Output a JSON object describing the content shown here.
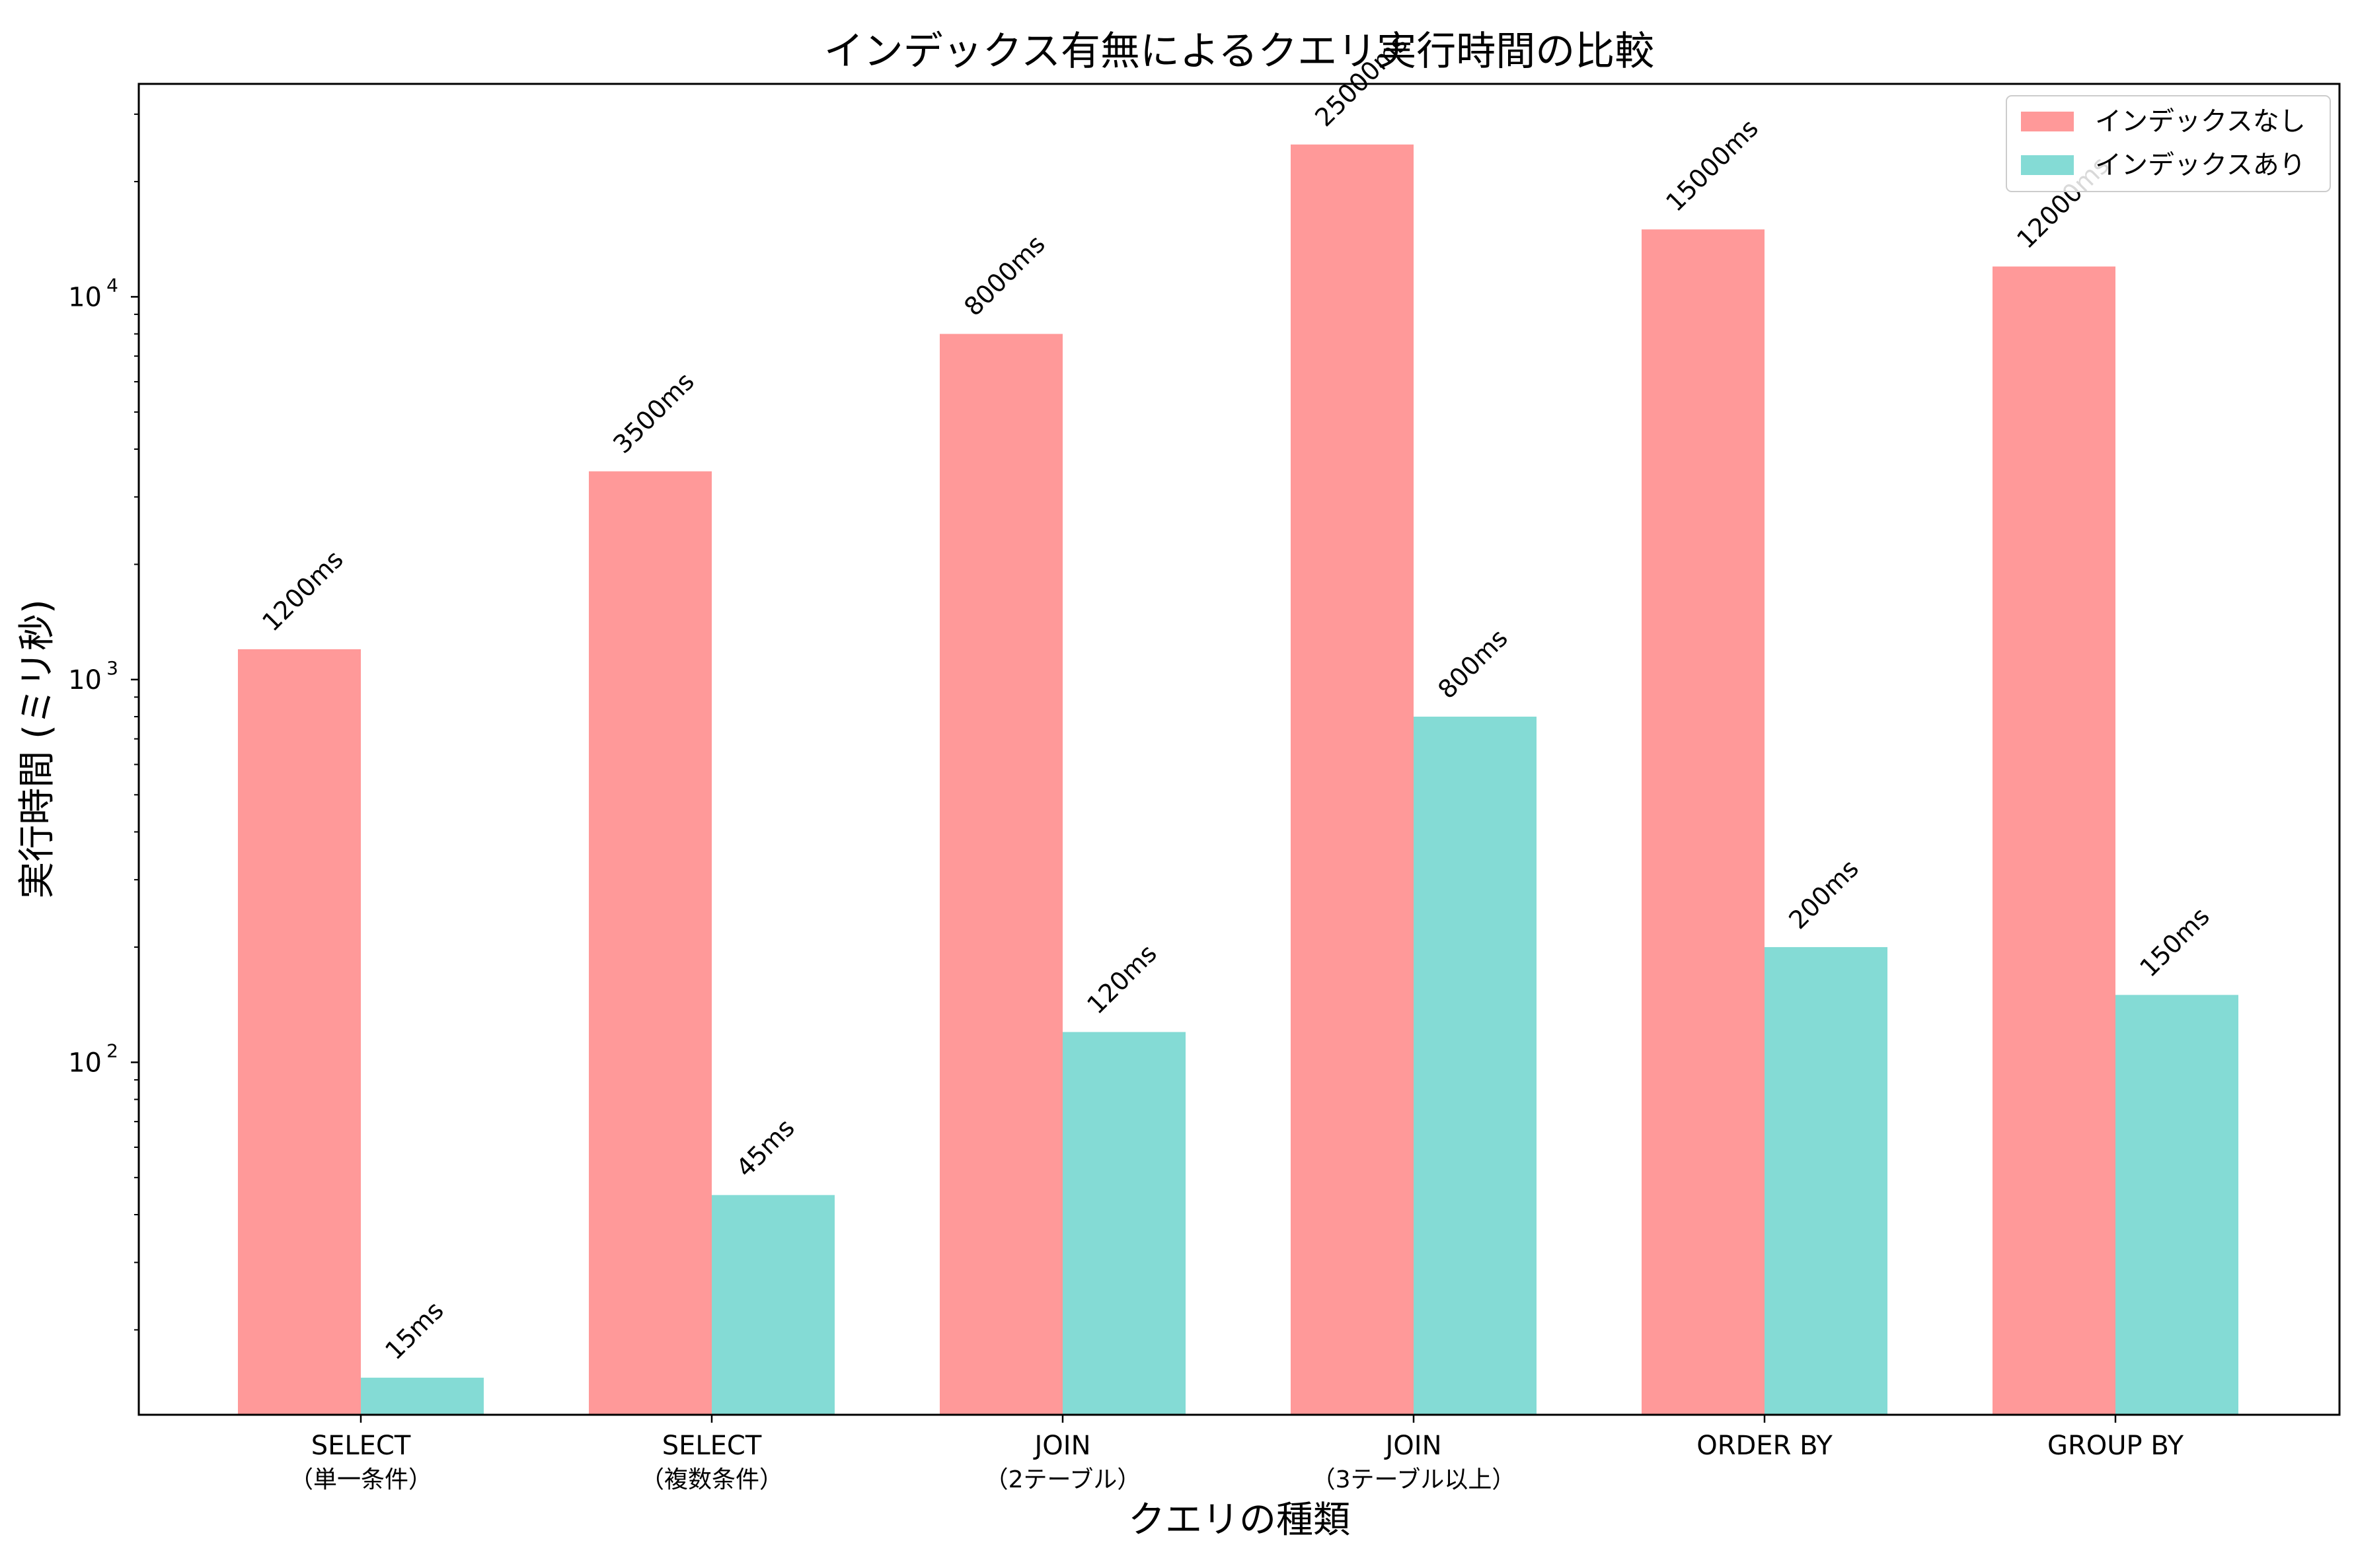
{
  "chart_data": {
    "type": "bar",
    "title": "インデックス有無によるクエリ実行時間の比較",
    "xlabel": "クエリの種類",
    "ylabel": "実行時間 (ミリ秒)",
    "yscale": "log",
    "ylim": [
      12,
      36000
    ],
    "grid": false,
    "legend_position": "top-right",
    "categories": [
      [
        "SELECT",
        "（単一条件）"
      ],
      [
        "SELECT",
        "（複数条件）"
      ],
      [
        "JOIN",
        "（2テーブル）"
      ],
      [
        "JOIN",
        "（3テーブル以上）"
      ],
      [
        "ORDER BY"
      ],
      [
        "GROUP BY"
      ]
    ],
    "y_ticks": [
      {
        "value": 100,
        "base": "10",
        "exp": "2"
      },
      {
        "value": 1000,
        "base": "10",
        "exp": "3"
      },
      {
        "value": 10000,
        "base": "10",
        "exp": "4"
      }
    ],
    "series": [
      {
        "name": "インデックスなし",
        "color": "#ff9999",
        "values": [
          1200,
          3500,
          8000,
          25000,
          15000,
          12000
        ],
        "labels": [
          "1200ms",
          "3500ms",
          "8000ms",
          "25000ms",
          "15000ms",
          "12000ms"
        ]
      },
      {
        "name": "インデックスあり",
        "color": "#84dbd5",
        "values": [
          15,
          45,
          120,
          800,
          200,
          150
        ],
        "labels": [
          "15ms",
          "45ms",
          "120ms",
          "800ms",
          "200ms",
          "150ms"
        ]
      }
    ]
  }
}
